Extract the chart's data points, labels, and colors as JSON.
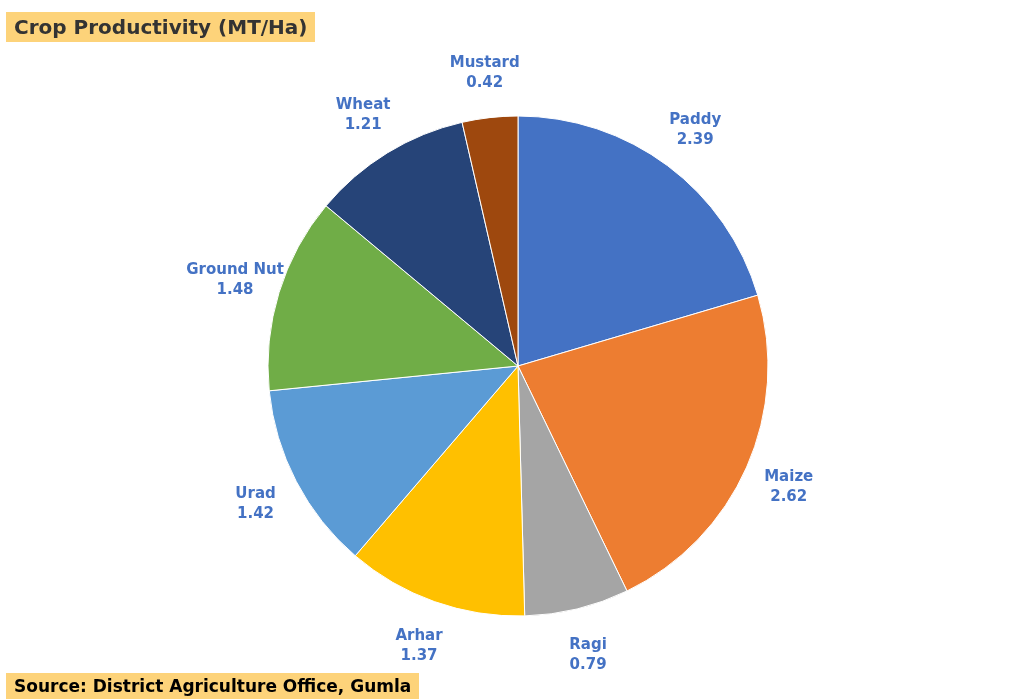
{
  "chart_data": {
    "type": "pie",
    "title": "Crop Productivity  (MT/Ha)",
    "categories": [
      "Paddy",
      "Maize",
      "Ragi",
      "Arhar",
      "Urad",
      "Ground Nut",
      "Wheat",
      "Mustard"
    ],
    "values": [
      2.39,
      2.62,
      0.79,
      1.37,
      1.42,
      1.48,
      1.21,
      0.42
    ],
    "colors": [
      "#4472c4",
      "#ed7d31",
      "#a5a5a5",
      "#ffc000",
      "#5b9bd5",
      "#70ad47",
      "#264478",
      "#9e480e"
    ],
    "data_labels": true,
    "annotations": [
      "Source: District Agriculture Office, Gumla"
    ]
  }
}
